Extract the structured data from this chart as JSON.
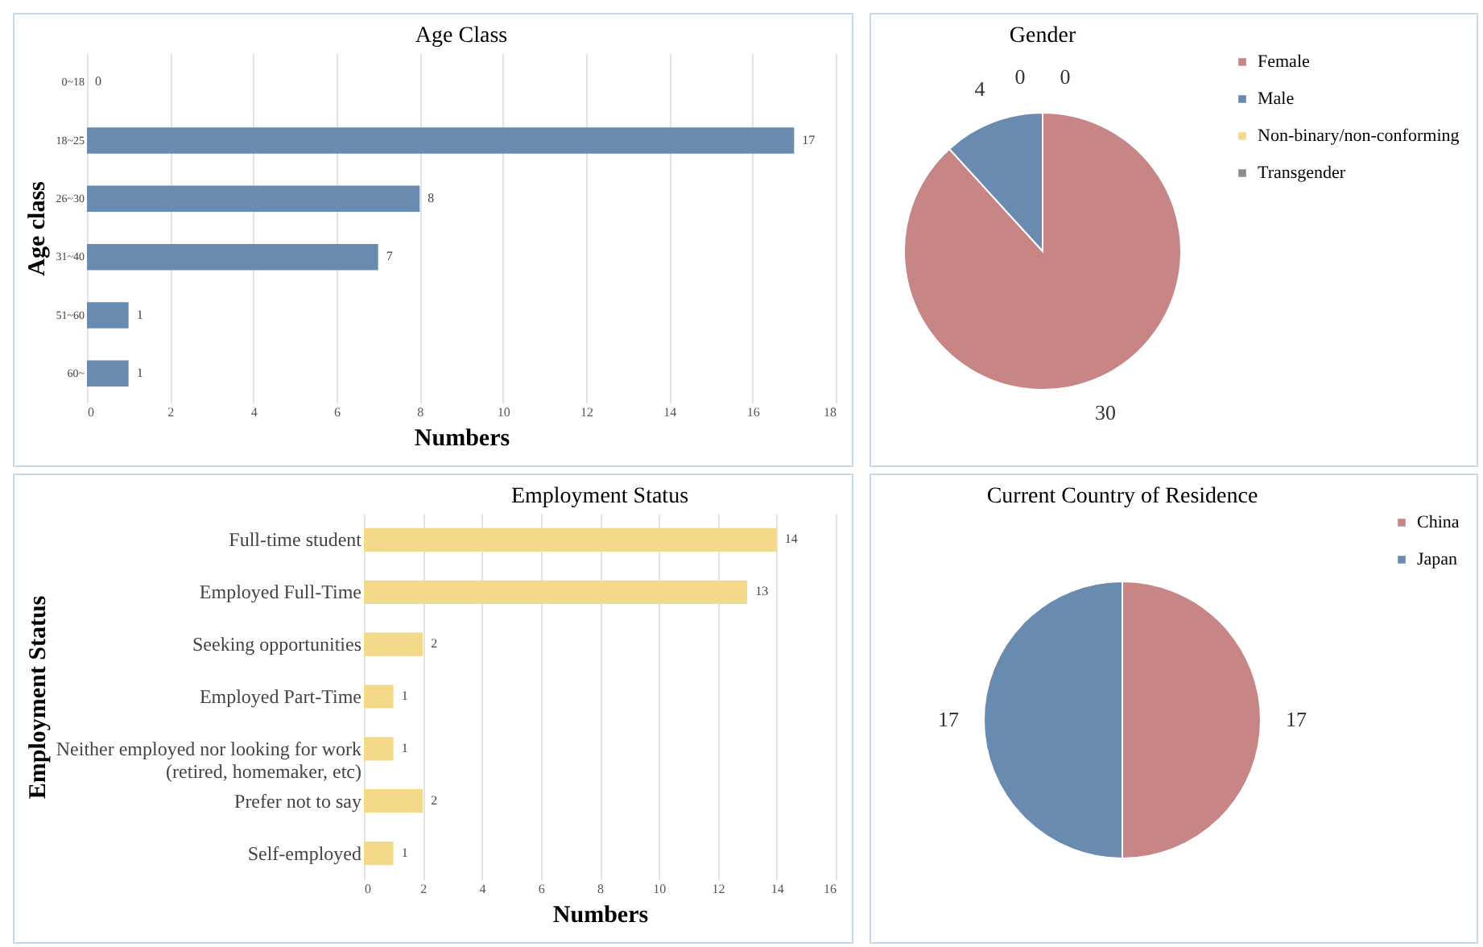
{
  "chart_data": [
    {
      "type": "bar",
      "orientation": "horizontal",
      "title": "Age Class",
      "xlabel": "Numbers",
      "ylabel": "Age class",
      "categories": [
        "0~18",
        "18~25",
        "26~30",
        "31~40",
        "51~60",
        "60~"
      ],
      "values": [
        0,
        17,
        8,
        7,
        1,
        1
      ],
      "color": "#6a8bb0",
      "xlim": [
        0,
        18
      ],
      "xticks": [
        0,
        2,
        4,
        6,
        8,
        10,
        12,
        14,
        16,
        18
      ],
      "grid": "x",
      "data_labels": true
    },
    {
      "type": "pie",
      "title": "Gender",
      "categories": [
        "Female",
        "Male",
        "Non-binary/non-conforming",
        "Transgender"
      ],
      "values": [
        30,
        4,
        0,
        0
      ],
      "colors": [
        "#c78585",
        "#6a8bb0",
        "#f5d98a",
        "#8c8c8c"
      ],
      "value_labels": [
        "30",
        "4",
        "0",
        "0"
      ],
      "legend": "right"
    },
    {
      "type": "bar",
      "orientation": "horizontal",
      "title": "Employment Status",
      "xlabel": "Numbers",
      "ylabel": "Employment Status",
      "categories": [
        "Full-time student",
        "Employed Full-Time",
        "Seeking opportunities",
        "Employed Part-Time",
        "Neither employed nor looking for work (retired, homemaker, etc)",
        "Prefer not to say",
        "Self-employed"
      ],
      "values": [
        14,
        13,
        2,
        1,
        1,
        2,
        1
      ],
      "color": "#f5d98a",
      "xlim": [
        0,
        16
      ],
      "xticks": [
        0,
        2,
        4,
        6,
        8,
        10,
        12,
        14,
        16
      ],
      "grid": "x",
      "data_labels": true
    },
    {
      "type": "pie",
      "title": "Current Country of Residence",
      "categories": [
        "China",
        "Japan"
      ],
      "values": [
        17,
        17
      ],
      "colors": [
        "#c78585",
        "#6a8bb0"
      ],
      "data_labels": true,
      "legend": "right"
    }
  ]
}
